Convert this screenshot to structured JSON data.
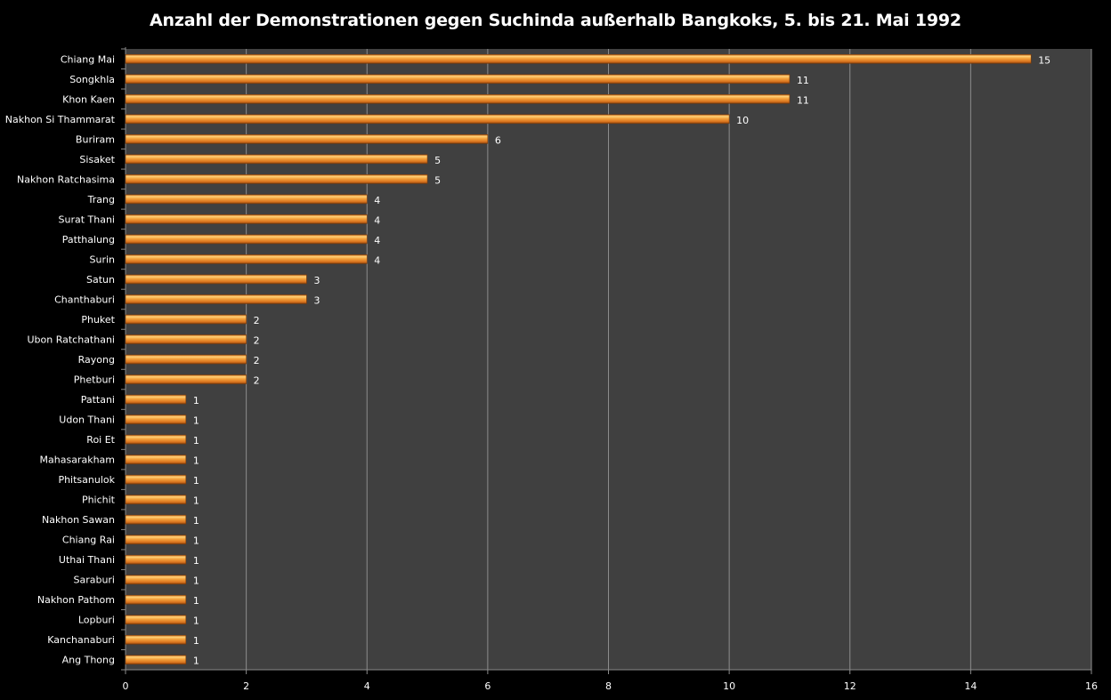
{
  "chart_data": {
    "type": "bar",
    "orientation": "horizontal",
    "title": "Anzahl der Demonstrationen gegen Suchinda außerhalb Bangkoks, 5. bis 21. Mai 1992",
    "xlabel": "",
    "ylabel": "",
    "xlim": [
      0,
      16
    ],
    "xticks": [
      0,
      2,
      4,
      6,
      8,
      10,
      12,
      14,
      16
    ],
    "grid": true,
    "legend": "none",
    "categories": [
      "Chiang Mai",
      "Songkhla",
      "Khon Kaen",
      "Nakhon Si Thammarat",
      "Buriram",
      "Sisaket",
      "Nakhon Ratchasima",
      "Trang",
      "Surat Thani",
      "Patthalung",
      "Surin",
      "Satun",
      "Chanthaburi",
      "Phuket",
      "Ubon Ratchathani",
      "Rayong",
      "Phetburi",
      "Pattani",
      "Udon Thani",
      "Roi Et",
      "Mahasarakham",
      "Phitsanulok",
      "Phichit",
      "Nakhon Sawan",
      "Chiang Rai",
      "Uthai Thani",
      "Saraburi",
      "Nakhon Pathom",
      "Lopburi",
      "Kanchanaburi",
      "Ang Thong"
    ],
    "values": [
      15,
      11,
      11,
      10,
      6,
      5,
      5,
      4,
      4,
      4,
      4,
      3,
      3,
      2,
      2,
      2,
      2,
      1,
      1,
      1,
      1,
      1,
      1,
      1,
      1,
      1,
      1,
      1,
      1,
      1,
      1
    ],
    "colors": {
      "background": "#000000",
      "plot": "#404040",
      "grid": "#8c8c8c",
      "bar": "#f0902a",
      "bar_light": "#ffd27a",
      "bar_dark": "#a04e10"
    }
  }
}
